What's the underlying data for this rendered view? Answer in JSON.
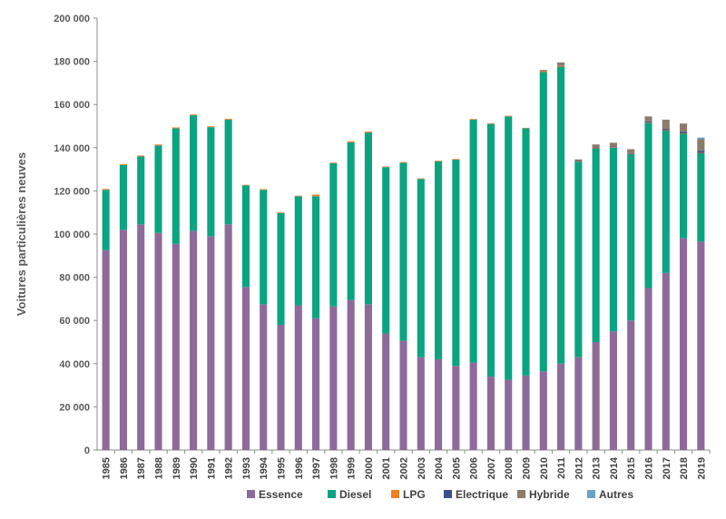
{
  "chart_data": {
    "type": "bar",
    "stacked": true,
    "title": "",
    "xlabel": "",
    "ylabel": "Voitures particulières neuves",
    "ylim": [
      0,
      200000
    ],
    "yticks": [
      0,
      20000,
      40000,
      60000,
      80000,
      100000,
      120000,
      140000,
      160000,
      180000,
      200000
    ],
    "ytick_labels": [
      "0",
      "20 000",
      "40 000",
      "60 000",
      "80 000",
      "100 000",
      "120 000",
      "140 000",
      "160 000",
      "180 000",
      "200 000"
    ],
    "grid": false,
    "legend_position": "bottom",
    "categories": [
      "1985",
      "1986",
      "1987",
      "1988",
      "1989",
      "1990",
      "1991",
      "1992",
      "1993",
      "1994",
      "1995",
      "1996",
      "1997",
      "1998",
      "1999",
      "2000",
      "2001",
      "2002",
      "2003",
      "2004",
      "2005",
      "2006",
      "2007",
      "2008",
      "2009",
      "2010",
      "2011",
      "2012",
      "2013",
      "2014",
      "2015",
      "2016",
      "2017",
      "2018",
      "2019"
    ],
    "series": [
      {
        "name": "Essence",
        "color": "#8e6a9b",
        "values": [
          92500,
          102000,
          104500,
          100500,
          95500,
          101500,
          99000,
          104500,
          75500,
          67500,
          58000,
          67000,
          61000,
          66500,
          69500,
          67500,
          54000,
          50500,
          43000,
          42000,
          39000,
          40500,
          34000,
          32500,
          34500,
          36500,
          40000,
          43000,
          50000,
          55000,
          60000,
          75000,
          82000,
          98000,
          96500
        ]
      },
      {
        "name": "Diesel",
        "color": "#0aa481",
        "values": [
          28000,
          30000,
          31500,
          40500,
          53500,
          53500,
          50500,
          48500,
          47000,
          53000,
          51700,
          50500,
          56500,
          66300,
          73000,
          79500,
          77000,
          82500,
          82500,
          91700,
          95500,
          112500,
          117000,
          122000,
          114500,
          138500,
          137500,
          90500,
          89500,
          85000,
          77000,
          76500,
          66000,
          48500,
          41000
        ]
      },
      {
        "name": "LPG",
        "color": "#f07f22",
        "values": [
          400,
          400,
          400,
          500,
          400,
          400,
          400,
          400,
          300,
          300,
          300,
          300,
          800,
          300,
          500,
          500,
          300,
          300,
          300,
          300,
          300,
          300,
          300,
          300,
          200,
          400,
          300,
          200,
          200,
          200,
          200,
          200,
          100,
          100,
          100
        ]
      },
      {
        "name": "Electrique",
        "color": "#3f4e8c",
        "values": [
          0,
          0,
          0,
          0,
          0,
          0,
          0,
          0,
          0,
          0,
          0,
          0,
          0,
          0,
          0,
          0,
          0,
          0,
          0,
          0,
          0,
          0,
          0,
          0,
          0,
          0,
          0,
          100,
          200,
          400,
          300,
          500,
          600,
          800,
          1000
        ]
      },
      {
        "name": "Hybride",
        "color": "#8c7b6b",
        "values": [
          0,
          0,
          0,
          0,
          0,
          0,
          0,
          0,
          0,
          0,
          0,
          0,
          0,
          0,
          0,
          0,
          0,
          0,
          0,
          0,
          0,
          0,
          0,
          0,
          0,
          600,
          1700,
          800,
          1600,
          1700,
          1800,
          2300,
          4300,
          3800,
          5500
        ]
      },
      {
        "name": "Autres",
        "color": "#6aa2c8",
        "values": [
          0,
          0,
          0,
          0,
          0,
          0,
          0,
          0,
          0,
          0,
          0,
          0,
          0,
          0,
          0,
          0,
          0,
          0,
          0,
          0,
          0,
          0,
          0,
          0,
          0,
          0,
          0,
          0,
          0,
          0,
          0,
          0,
          0,
          0,
          600
        ]
      }
    ]
  }
}
